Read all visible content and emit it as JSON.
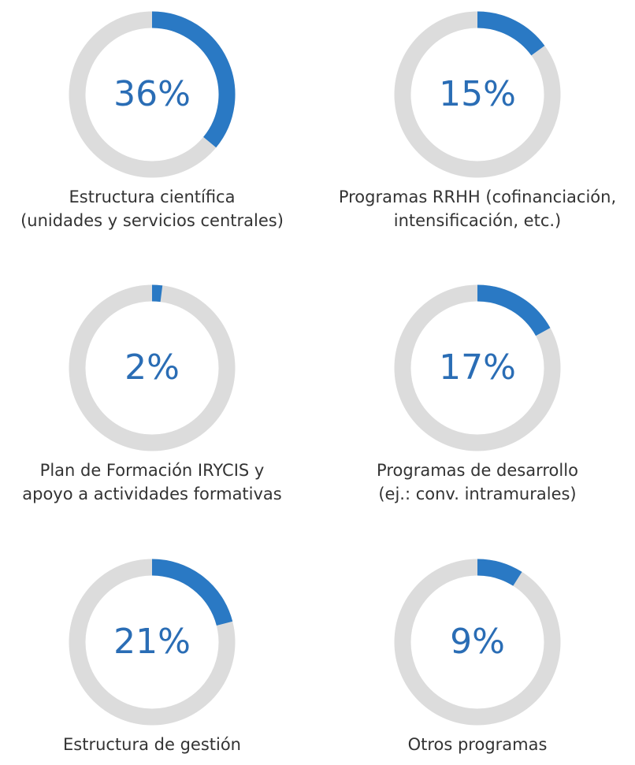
{
  "chart_data": [
    {
      "type": "donut",
      "values": [
        36
      ],
      "value_labels": [
        "36%"
      ],
      "ylim": [
        0,
        100
      ],
      "color": "#2a79c4",
      "title": [
        "Estructura científica",
        "(unidades y servicios centrales)"
      ]
    },
    {
      "type": "donut",
      "values": [
        15
      ],
      "value_labels": [
        "15%"
      ],
      "ylim": [
        0,
        100
      ],
      "color": "#2a79c4",
      "title": [
        "Programas RRHH (cofinanciación,",
        "intensificación, etc.)"
      ]
    },
    {
      "type": "donut",
      "values": [
        2
      ],
      "value_labels": [
        "2%"
      ],
      "ylim": [
        0,
        100
      ],
      "color": "#2a79c4",
      "title": [
        "Plan de Formación IRYCIS y",
        "apoyo a actividades formativas"
      ]
    },
    {
      "type": "donut",
      "values": [
        17
      ],
      "value_labels": [
        "17%"
      ],
      "ylim": [
        0,
        100
      ],
      "color": "#2a79c4",
      "title": [
        "Programas de desarrollo",
        "(ej.: conv. intramurales)"
      ]
    },
    {
      "type": "donut",
      "values": [
        21
      ],
      "value_labels": [
        "21%"
      ],
      "ylim": [
        0,
        100
      ],
      "color": "#2a79c4",
      "title": [
        "Estructura de gestión"
      ]
    },
    {
      "type": "donut",
      "values": [
        9
      ],
      "value_labels": [
        "9%"
      ],
      "ylim": [
        0,
        100
      ],
      "color": "#2a79c4",
      "title": [
        "Otros programas"
      ]
    }
  ]
}
